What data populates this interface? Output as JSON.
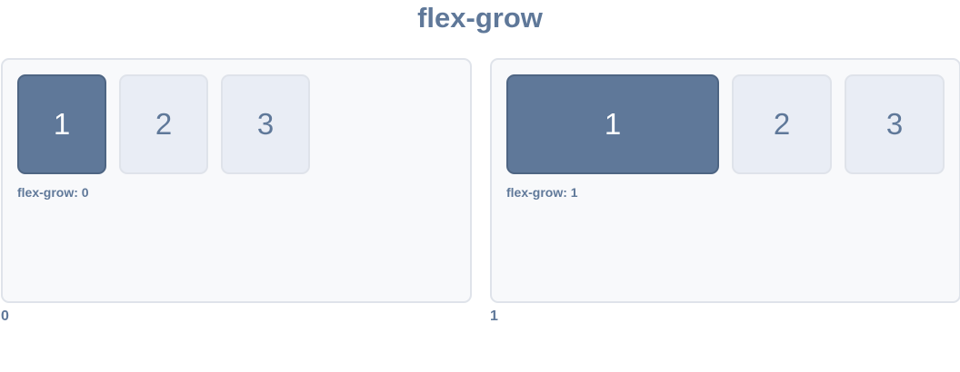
{
  "title": "flex-grow",
  "panels": [
    {
      "items": [
        "1",
        "2",
        "3"
      ],
      "caption": "flex-grow: 0",
      "value": "0"
    },
    {
      "items": [
        "1",
        "2",
        "3"
      ],
      "caption": "flex-grow: 1",
      "value": "1"
    }
  ],
  "colors": {
    "accent": "#5f7899",
    "box_fill": "#e9edf5",
    "box_border": "#dfe3ea",
    "panel_fill": "#f8f9fb"
  }
}
